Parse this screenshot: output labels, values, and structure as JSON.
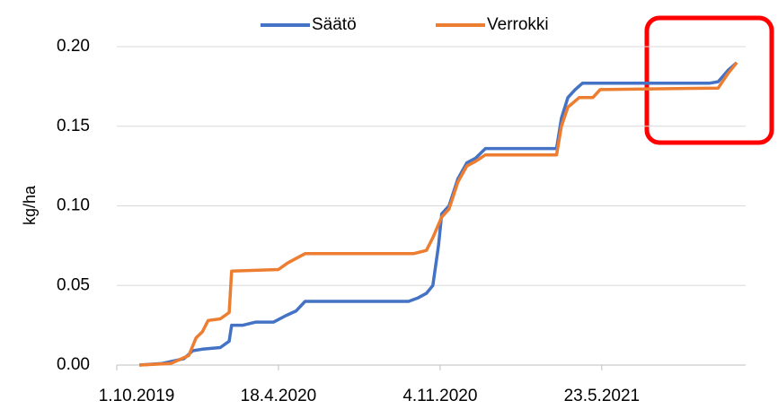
{
  "chart_data": {
    "type": "line",
    "y_label": "kg/ha",
    "xlim": [
      "2019-10-01",
      "2021-11-17"
    ],
    "xticks": [
      {
        "value": "2019-10-01",
        "label": "1.10.2019"
      },
      {
        "value": "2020-04-18",
        "label": "18.4.2020"
      },
      {
        "value": "2020-11-04",
        "label": "4.11.2020"
      },
      {
        "value": "2021-05-23",
        "label": "23.5.2021"
      }
    ],
    "ylim": [
      0,
      0.2
    ],
    "yticks": [
      {
        "value": 0,
        "label": "0.00"
      },
      {
        "value": 0.05,
        "label": "0.05"
      },
      {
        "value": 0.1,
        "label": "0.10"
      },
      {
        "value": 0.15,
        "label": "0.15"
      },
      {
        "value": 0.2,
        "label": "0.20"
      }
    ],
    "grid": true,
    "legend": "top",
    "series": [
      {
        "name": "Säätö",
        "color": "#4472c4",
        "x": [
          "2019-10-29",
          "2019-11-26",
          "2019-12-23",
          "2020-01-03",
          "2020-01-15",
          "2020-02-06",
          "2020-02-17",
          "2020-02-20",
          "2020-03-05",
          "2020-03-21",
          "2020-04-12",
          "2020-04-27",
          "2020-05-10",
          "2020-05-21",
          "2020-09-26",
          "2020-10-07",
          "2020-10-18",
          "2020-10-26",
          "2020-11-02",
          "2020-11-06",
          "2020-11-15",
          "2020-11-26",
          "2020-12-07",
          "2020-12-18",
          "2020-12-30",
          "2021-03-28",
          "2021-04-03",
          "2021-04-11",
          "2021-04-20",
          "2021-04-29",
          "2021-10-03",
          "2021-10-14",
          "2021-10-26",
          "2021-11-06"
        ],
        "values": [
          0,
          0.001,
          0.004,
          0.009,
          0.01,
          0.011,
          0.015,
          0.025,
          0.025,
          0.027,
          0.027,
          0.031,
          0.034,
          0.04,
          0.04,
          0.042,
          0.045,
          0.05,
          0.075,
          0.095,
          0.1,
          0.117,
          0.127,
          0.13,
          0.136,
          0.136,
          0.155,
          0.168,
          0.173,
          0.177,
          0.177,
          0.178,
          0.185,
          0.19
        ]
      },
      {
        "name": "Verrokki",
        "color": "#ed7d31",
        "x": [
          "2019-10-29",
          "2019-12-07",
          "2019-12-29",
          "2020-01-07",
          "2020-01-15",
          "2020-01-22",
          "2020-02-06",
          "2020-02-17",
          "2020-02-20",
          "2020-04-18",
          "2020-04-29",
          "2020-05-10",
          "2020-05-21",
          "2020-10-02",
          "2020-10-18",
          "2020-10-26",
          "2020-11-06",
          "2020-11-15",
          "2020-11-26",
          "2020-12-07",
          "2020-12-18",
          "2020-12-30",
          "2021-03-28",
          "2021-04-03",
          "2021-04-11",
          "2021-04-25",
          "2021-05-12",
          "2021-05-21",
          "2021-10-14",
          "2021-10-26",
          "2021-11-06"
        ],
        "values": [
          0,
          0.001,
          0.006,
          0.017,
          0.021,
          0.028,
          0.029,
          0.033,
          0.059,
          0.06,
          0.064,
          0.067,
          0.07,
          0.07,
          0.072,
          0.08,
          0.093,
          0.098,
          0.115,
          0.125,
          0.128,
          0.132,
          0.132,
          0.15,
          0.162,
          0.168,
          0.168,
          0.173,
          0.174,
          0.183,
          0.19
        ]
      }
    ]
  }
}
